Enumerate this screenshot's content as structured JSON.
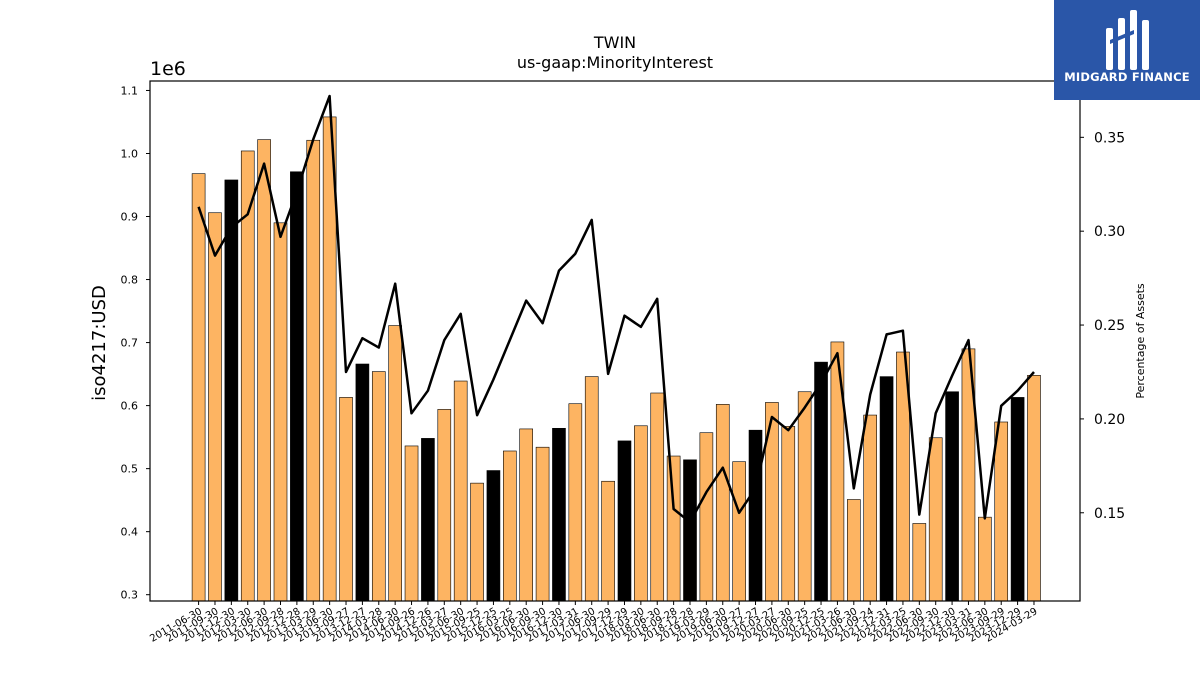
{
  "chart_data": {
    "type": "bar",
    "title": "TWIN",
    "subtitle": "us-gaap:MinorityInterest",
    "ylabel": "iso4217:USD",
    "y_scale_label": "1e6",
    "y2label": "Percentage of Assets",
    "ylim": [
      0.29,
      1.115
    ],
    "y2lim": [
      0.103,
      0.38
    ],
    "yticks": [
      "0.3",
      "0.4",
      "0.5",
      "0.6",
      "0.7",
      "0.8",
      "0.9",
      "1.0",
      "1.1"
    ],
    "y2ticks": [
      "0.15",
      "0.20",
      "0.25",
      "0.30",
      "0.35"
    ],
    "grid": false,
    "categories": [
      "2011-06-30",
      "2011-09-30",
      "2011-12-30",
      "2012-03-30",
      "2012-06-30",
      "2012-09-28",
      "2012-12-28",
      "2013-03-29",
      "2013-06-30",
      "2013-09-27",
      "2013-12-27",
      "2014-03-28",
      "2014-06-30",
      "2014-09-26",
      "2014-12-26",
      "2015-03-27",
      "2015-06-30",
      "2015-09-25",
      "2015-12-25",
      "2016-03-25",
      "2016-06-30",
      "2016-09-30",
      "2016-12-30",
      "2017-03-31",
      "2017-06-30",
      "2017-09-29",
      "2017-12-29",
      "2018-03-30",
      "2018-06-30",
      "2018-09-28",
      "2018-12-28",
      "2019-03-29",
      "2019-06-30",
      "2019-09-27",
      "2019-12-27",
      "2020-03-27",
      "2020-06-30",
      "2020-09-25",
      "2020-12-25",
      "2021-03-26",
      "2021-06-30",
      "2021-09-24",
      "2021-12-31",
      "2022-03-25",
      "2022-06-30",
      "2022-09-30",
      "2022-12-30",
      "2023-03-31",
      "2023-06-30",
      "2023-09-29",
      "2023-12-29",
      "2024-03-29"
    ],
    "values": [
      0.968,
      0.906,
      0.958,
      1.004,
      1.022,
      0.89,
      0.971,
      1.021,
      1.058,
      0.613,
      0.666,
      0.654,
      0.727,
      0.536,
      0.548,
      0.594,
      0.639,
      0.477,
      0.497,
      0.528,
      0.563,
      0.534,
      0.564,
      0.603,
      0.646,
      0.48,
      0.544,
      0.568,
      0.62,
      0.52,
      0.514,
      0.557,
      0.602,
      0.511,
      0.561,
      0.605,
      0.567,
      0.622,
      0.669,
      0.701,
      0.451,
      0.585,
      0.646,
      0.685,
      0.413,
      0.549,
      0.622,
      0.69,
      0.423,
      0.574,
      0.613,
      0.648
    ],
    "bar_colors": [
      "#fdb462",
      "#fdb462",
      "#000000",
      "#fdb462",
      "#fdb462",
      "#fdb462",
      "#000000",
      "#fdb462",
      "#fdb462",
      "#fdb462",
      "#000000",
      "#fdb462",
      "#fdb462",
      "#fdb462",
      "#000000",
      "#fdb462",
      "#fdb462",
      "#fdb462",
      "#000000",
      "#fdb462",
      "#fdb462",
      "#fdb462",
      "#000000",
      "#fdb462",
      "#fdb462",
      "#fdb462",
      "#000000",
      "#fdb462",
      "#fdb462",
      "#fdb462",
      "#000000",
      "#fdb462",
      "#fdb462",
      "#fdb462",
      "#000000",
      "#fdb462",
      "#fdb462",
      "#fdb462",
      "#000000",
      "#fdb462",
      "#fdb462",
      "#fdb462",
      "#000000",
      "#fdb462",
      "#fdb462",
      "#fdb462",
      "#000000",
      "#fdb462",
      "#fdb462",
      "#fdb462",
      "#000000",
      "#fdb462"
    ],
    "line_values": [
      0.313,
      0.287,
      0.302,
      0.309,
      0.336,
      0.297,
      0.321,
      0.349,
      0.372,
      0.225,
      0.243,
      0.238,
      0.272,
      0.203,
      0.215,
      0.242,
      0.256,
      0.202,
      0.221,
      0.242,
      0.263,
      0.251,
      0.279,
      0.288,
      0.306,
      0.224,
      0.255,
      0.249,
      0.264,
      0.152,
      0.145,
      0.161,
      0.174,
      0.15,
      0.163,
      0.201,
      0.194,
      0.206,
      0.219,
      0.235,
      0.163,
      0.213,
      0.245,
      0.247,
      0.149,
      0.203,
      0.223,
      0.242,
      0.147,
      0.207,
      0.215,
      0.225
    ],
    "line_color": "#000000"
  },
  "logo": {
    "text": "MIDGARD FINANCE",
    "bg_color": "#2a56a8"
  }
}
